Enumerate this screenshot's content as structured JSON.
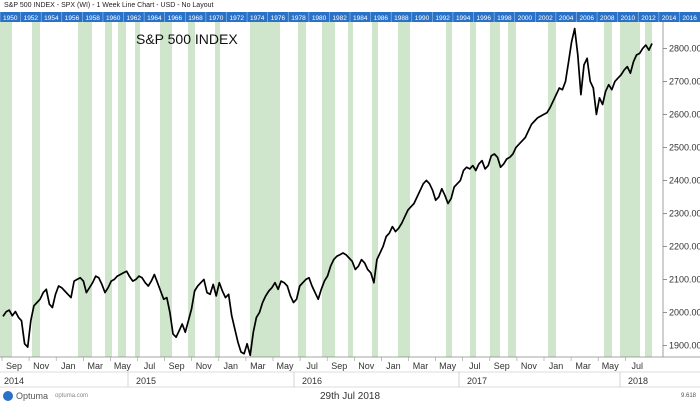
{
  "window": {
    "title": "S&P 500 INDEX - SPX (WI) - 1 Week Line Chart - USD - No Layout",
    "footer_date": "29th Jul 2018",
    "logo": "Optuma",
    "logo_url": "optuma.com",
    "scale_readout": "9.618"
  },
  "colors": {
    "line": "#000000",
    "band": "#cfe5cc",
    "ruler": "#2a72c7",
    "grid_text": "#333333"
  },
  "year_ruler": {
    "labels": [
      "1950",
      "1952",
      "1954",
      "1956",
      "1958",
      "1960",
      "1962",
      "1964",
      "1966",
      "1968",
      "1970",
      "1972",
      "1974",
      "1976",
      "1978",
      "1980",
      "1982",
      "1984",
      "1986",
      "1988",
      "1990",
      "1992",
      "1994",
      "1996",
      "1998",
      "2000",
      "2002",
      "2004",
      "2006",
      "2008",
      "2010",
      "2012",
      "2014",
      "2016"
    ]
  },
  "chart_data": {
    "type": "line",
    "title": "S&P 500 INDEX",
    "yticks": [
      1900,
      2000,
      2100,
      2200,
      2300,
      2400,
      2500,
      2600,
      2700,
      2800
    ],
    "ylim": [
      1865,
      2880
    ],
    "month_labels": [
      "Sep",
      "Nov",
      "Jan",
      "Mar",
      "May",
      "Jul",
      "Sep",
      "Nov",
      "Jan",
      "Mar",
      "May",
      "Jul",
      "Sep",
      "Nov",
      "Jan",
      "Mar",
      "May",
      "Jul",
      "Sep",
      "Nov",
      "Jan",
      "Mar",
      "May",
      "Jul"
    ],
    "year_labels": [
      "2014",
      "2015",
      "2016",
      "2017",
      "2018"
    ],
    "series": [
      {
        "values": [
          1988,
          2002,
          2007,
          1990,
          2003,
          1985,
          1975,
          1905,
          1895,
          1975,
          2020,
          2030,
          2040,
          2060,
          2070,
          2025,
          2015,
          2055,
          2080,
          2075,
          2065,
          2055,
          2045,
          2095,
          2100,
          2105,
          2095,
          2060,
          2075,
          2090,
          2110,
          2105,
          2085,
          2060,
          2075,
          2095,
          2100,
          2110,
          2115,
          2120,
          2125,
          2108,
          2095,
          2100,
          2110,
          2105,
          2090,
          2080,
          2095,
          2115,
          2090,
          2065,
          2040,
          2045,
          2000,
          1935,
          1925,
          1945,
          1965,
          1940,
          1975,
          2010,
          2065,
          2080,
          2090,
          2100,
          2060,
          2055,
          2085,
          2050,
          2090,
          2065,
          2045,
          2055,
          1990,
          1950,
          1910,
          1880,
          1875,
          1905,
          1870,
          1940,
          1985,
          2000,
          2030,
          2050,
          2065,
          2075,
          2090,
          2070,
          2095,
          2090,
          2080,
          2050,
          2030,
          2040,
          2080,
          2090,
          2100,
          2105,
          2080,
          2060,
          2040,
          2070,
          2095,
          2110,
          2140,
          2160,
          2170,
          2175,
          2180,
          2175,
          2165,
          2155,
          2130,
          2140,
          2160,
          2150,
          2130,
          2120,
          2090,
          2160,
          2180,
          2200,
          2230,
          2240,
          2260,
          2245,
          2255,
          2270,
          2290,
          2310,
          2320,
          2330,
          2350,
          2370,
          2390,
          2400,
          2390,
          2370,
          2340,
          2350,
          2375,
          2355,
          2330,
          2345,
          2380,
          2390,
          2400,
          2430,
          2440,
          2435,
          2445,
          2430,
          2450,
          2460,
          2435,
          2445,
          2475,
          2480,
          2470,
          2440,
          2450,
          2465,
          2470,
          2480,
          2500,
          2510,
          2520,
          2530,
          2550,
          2570,
          2580,
          2590,
          2595,
          2600,
          2605,
          2620,
          2640,
          2660,
          2680,
          2675,
          2700,
          2760,
          2820,
          2860,
          2780,
          2660,
          2750,
          2770,
          2700,
          2680,
          2600,
          2650,
          2630,
          2670,
          2690,
          2675,
          2700,
          2710,
          2720,
          2735,
          2745,
          2725,
          2760,
          2780,
          2785,
          2800,
          2810,
          2795,
          2815
        ]
      }
    ]
  }
}
